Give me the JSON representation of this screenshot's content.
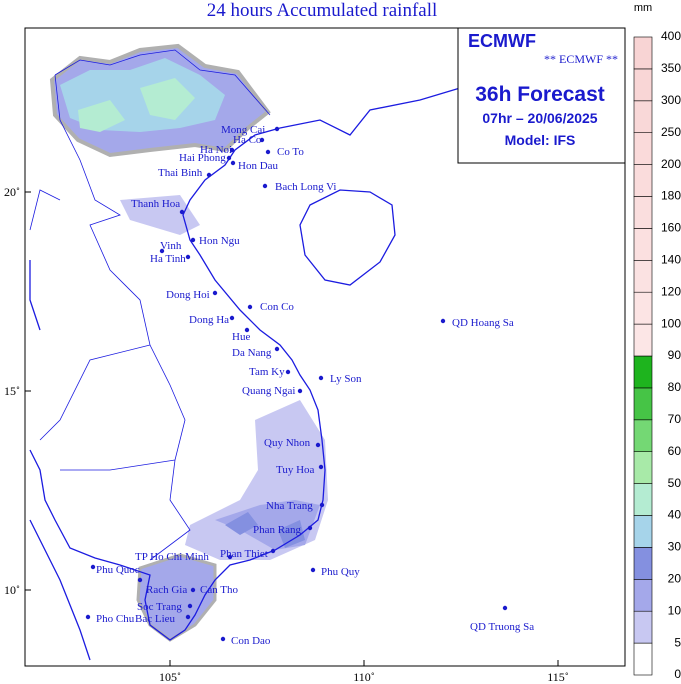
{
  "title": "24 hours Accumulated rainfall",
  "info": {
    "logo": "ECMWF",
    "subtitle": "** ECMWF **",
    "forecast": "36h Forecast",
    "time": "07hr – 20/06/2025",
    "model": "Model: IFS"
  },
  "x_ticks": [
    {
      "value": 105,
      "label": "105˚"
    },
    {
      "value": 110,
      "label": "110˚"
    },
    {
      "value": 115,
      "label": "115˚"
    }
  ],
  "y_ticks": [
    {
      "value": 20,
      "label": "20˚"
    },
    {
      "value": 15,
      "label": "15˚"
    },
    {
      "value": 10,
      "label": "10˚"
    }
  ],
  "colorbar": {
    "unit": "mm",
    "levels": [
      0,
      5,
      10,
      20,
      30,
      40,
      50,
      60,
      70,
      80,
      90,
      100,
      120,
      140,
      160,
      180,
      200,
      250,
      300,
      350,
      400
    ],
    "colors": [
      "#ffffff",
      "#c8c8f2",
      "#a4a8ea",
      "#8490e0",
      "#a6d4ea",
      "#b4ecd2",
      "#a8eaa8",
      "#74d874",
      "#46c446",
      "#1eb41e",
      "#fce6e6",
      "#fce4e4",
      "#fbe2e2",
      "#fbe0e0",
      "#fadede",
      "#fadcdc",
      "#fadada",
      "#f9d8d8",
      "#f9d6d6",
      "#f8d4d4"
    ]
  },
  "cities": [
    "Mong Cai",
    "Ha Co",
    "Ha Noi",
    "Co To",
    "Hai Phong",
    "Hon Dau",
    "Thai Binh",
    "Bach Long Vi",
    "Thanh Hoa",
    "Hon Ngu",
    "Vinh",
    "Ha Tinh",
    "Dong Hoi",
    "Con Co",
    "Dong Ha",
    "Hue",
    "Da Nang",
    "Tam Ky",
    "Ly Son",
    "Quang Ngai",
    "Quy Nhon",
    "Tuy Hoa",
    "Nha Trang",
    "Phan Rang",
    "Phan Thiet",
    "TP Ho Chi Minh",
    "Phu Quoc",
    "Phu Quy",
    "Rach Gia",
    "Can Tho",
    "Soc Trang",
    "Pho Chu",
    "Bac Lieu",
    "Con Dao",
    "QD Hoang Sa",
    "QD Truong Sa"
  ]
}
